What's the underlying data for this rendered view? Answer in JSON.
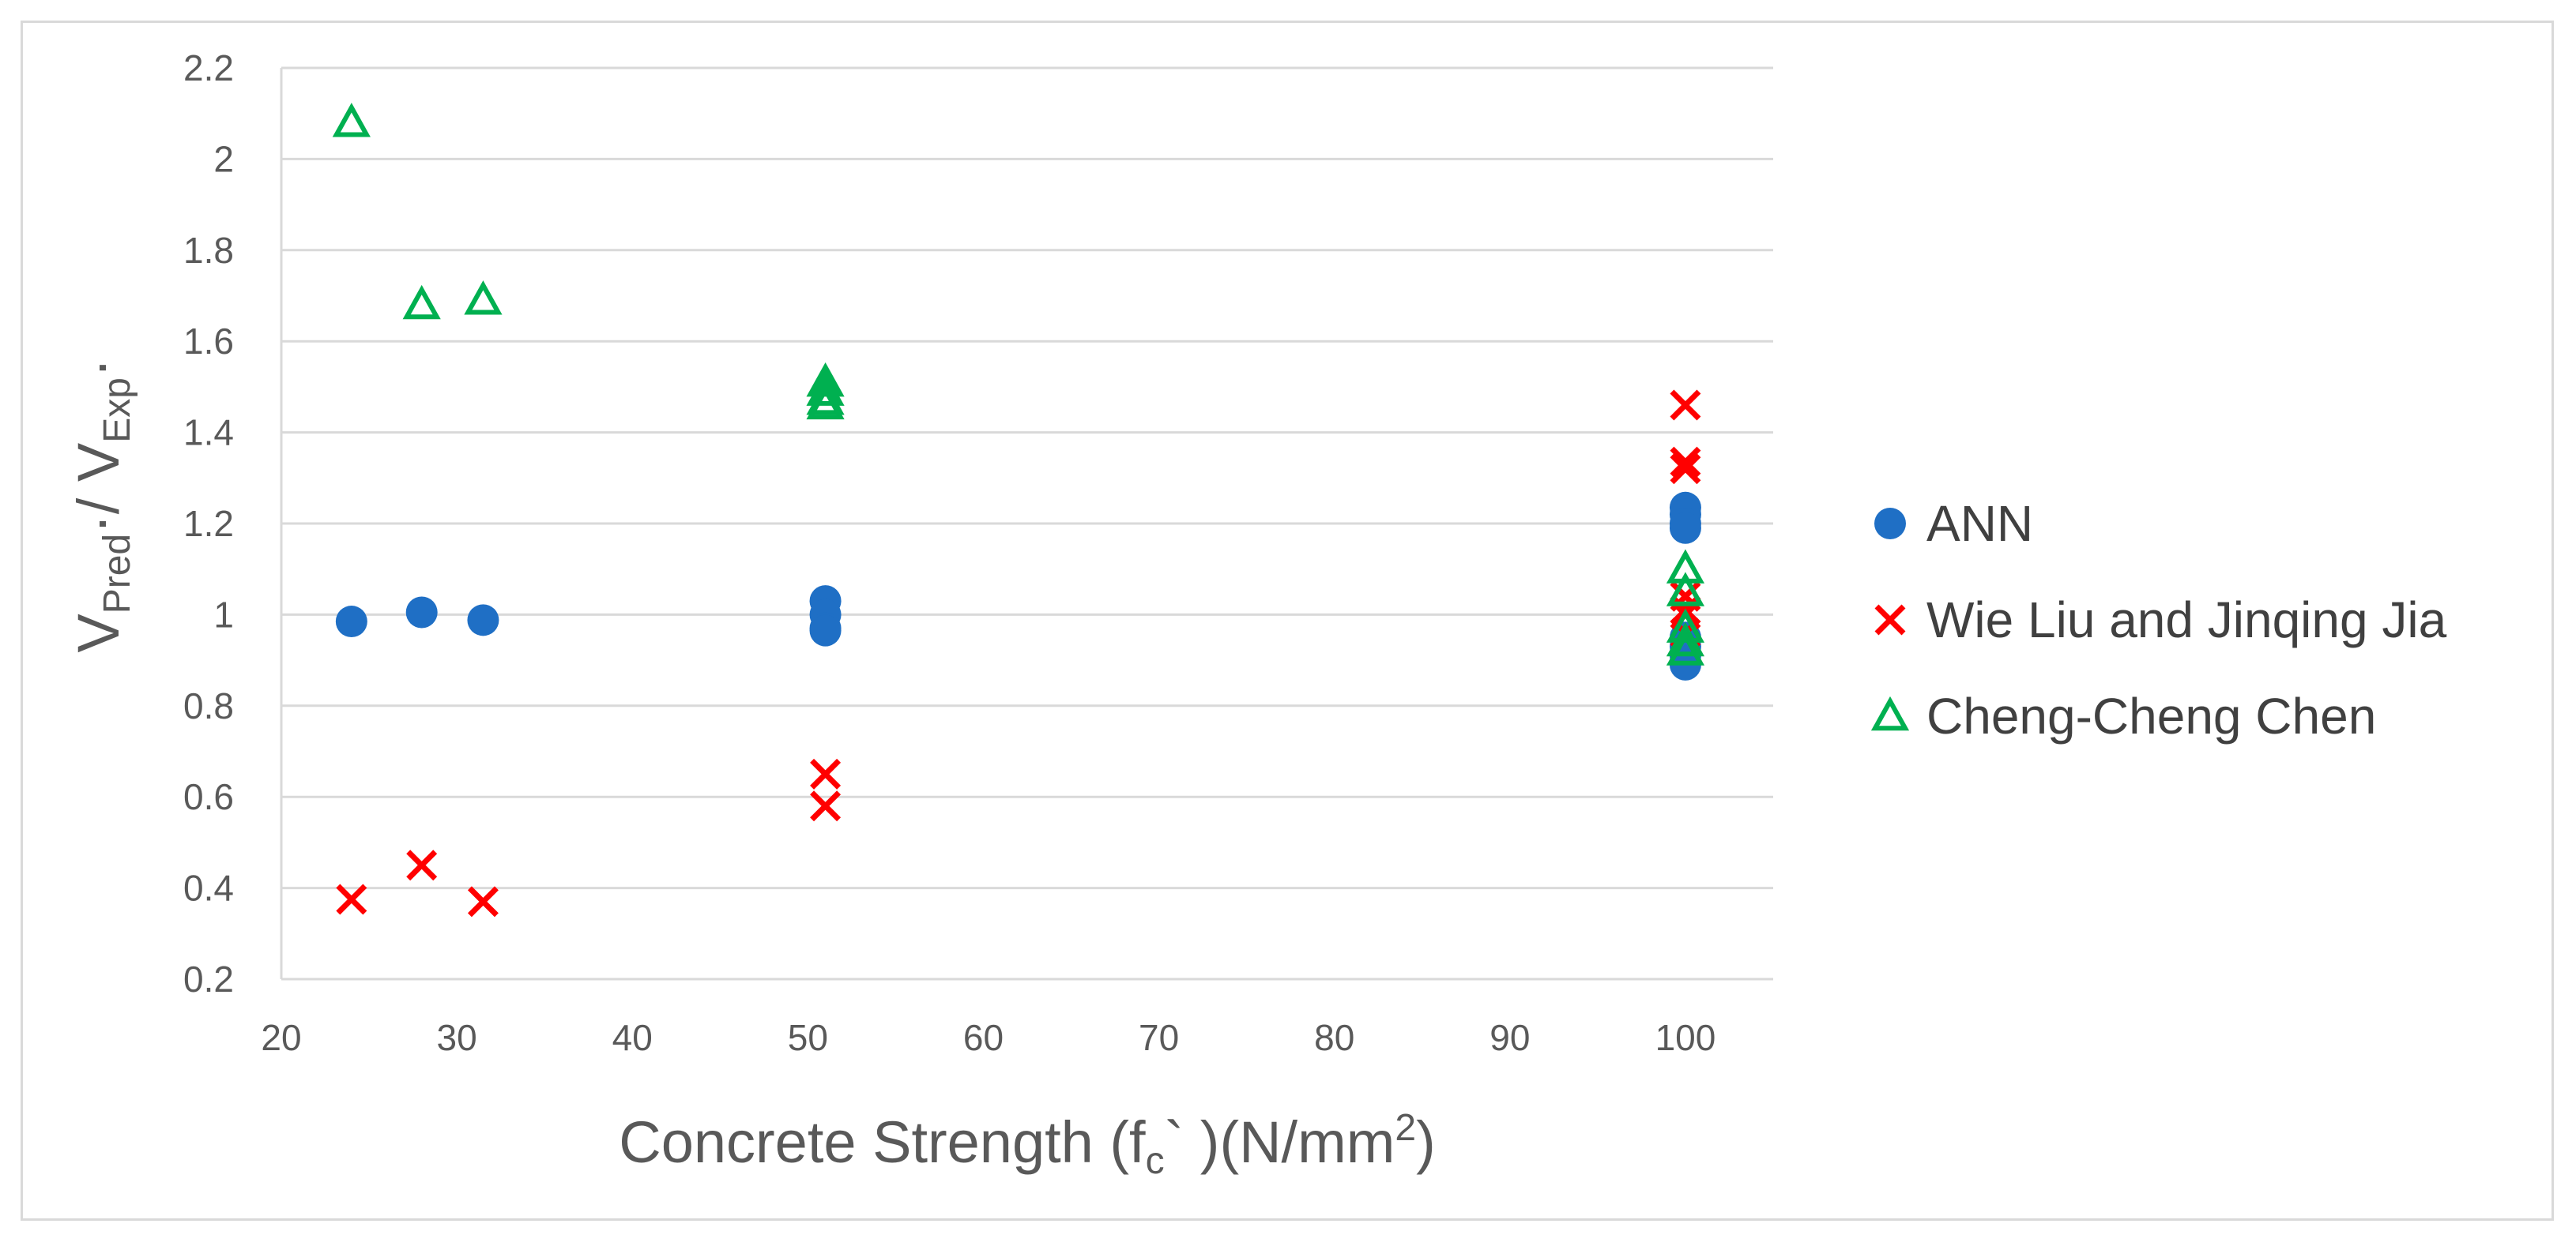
{
  "chart_data": {
    "type": "scatter",
    "title": "",
    "xlabel": {
      "main": "Concrete Strength (f",
      "sub": "c",
      "after": "`  )(N/mm",
      "sup": "2",
      "close": ")"
    },
    "ylabel": {
      "v1": "V",
      "sub1": "Pred",
      "mid": "·/ V",
      "sub2": "Exp",
      "end": "·"
    },
    "xlim": [
      20,
      105
    ],
    "ylim": [
      0.2,
      2.2
    ],
    "x_ticks": [
      20,
      30,
      40,
      50,
      60,
      70,
      80,
      90,
      100
    ],
    "y_ticks": [
      0.2,
      0.4,
      0.6,
      0.8,
      1,
      1.2,
      1.4,
      1.6,
      1.8,
      2,
      2.2
    ],
    "y_tick_labels": [
      "0.2",
      "0.4",
      "0.6",
      "0.8",
      "1",
      "1.2",
      "1.4",
      "1.6",
      "1.8",
      "2",
      "2.2"
    ],
    "grid": true,
    "legend_position": "right",
    "series": [
      {
        "name": "ANN",
        "marker": "circle",
        "color": "#1f6fc5",
        "points": [
          [
            24,
            0.985
          ],
          [
            28,
            1.005
          ],
          [
            31.5,
            0.988
          ],
          [
            51,
            1.03
          ],
          [
            51,
            1.0
          ],
          [
            51,
            0.97
          ],
          [
            51,
            0.965
          ],
          [
            100,
            1.235
          ],
          [
            100,
            1.22
          ],
          [
            100,
            1.2
          ],
          [
            100,
            1.19
          ],
          [
            100,
            0.95
          ],
          [
            100,
            0.93
          ],
          [
            100,
            0.91
          ],
          [
            100,
            0.89
          ]
        ]
      },
      {
        "name": "Wie Liu and Jinqing Jia",
        "marker": "x",
        "color": "#ff0000",
        "points": [
          [
            24,
            0.375
          ],
          [
            28,
            0.45
          ],
          [
            31.5,
            0.37
          ],
          [
            51,
            0.65
          ],
          [
            51,
            0.58
          ],
          [
            100,
            1.46
          ],
          [
            100,
            1.335
          ],
          [
            100,
            1.32
          ],
          [
            100,
            1.04
          ],
          [
            100,
            1.01
          ],
          [
            100,
            1.0
          ],
          [
            100,
            0.96
          ]
        ]
      },
      {
        "name": "Cheng-Cheng Chen",
        "marker": "triangle",
        "color": "#00b050",
        "points": [
          [
            24,
            2.08
          ],
          [
            28,
            1.68
          ],
          [
            31.5,
            1.69
          ],
          [
            51,
            1.51
          ],
          [
            51,
            1.49
          ],
          [
            51,
            1.47
          ],
          [
            51,
            1.46
          ],
          [
            100,
            1.1
          ],
          [
            100,
            1.05
          ],
          [
            100,
            0.97
          ],
          [
            100,
            0.94
          ],
          [
            100,
            0.92
          ]
        ]
      }
    ]
  }
}
